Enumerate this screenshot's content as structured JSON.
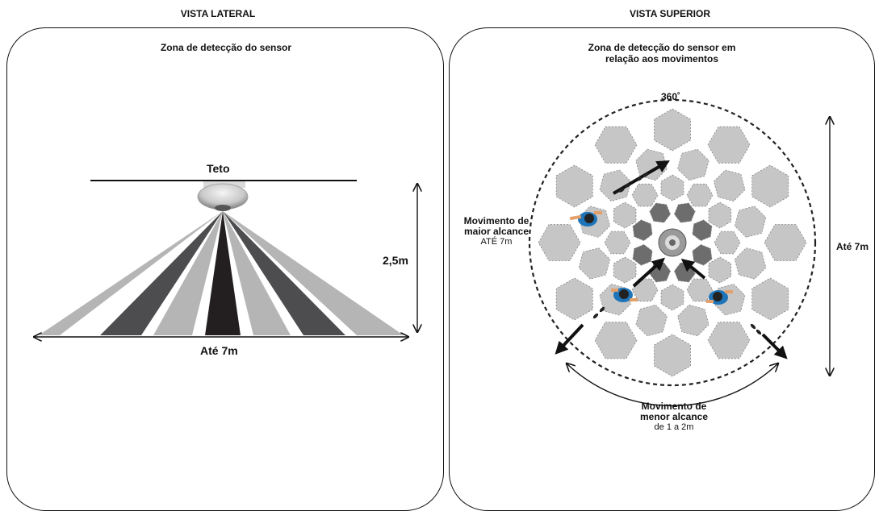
{
  "left": {
    "section_title": "VISTA LATERAL",
    "panel_title": "Zona de detecção do sensor",
    "ceiling_label": "Teto",
    "height_label": "2,5m",
    "range_label": "Até 7m"
  },
  "right": {
    "section_title": "VISTA SUPERIOR",
    "panel_title_line1": "Zona de detecção do sensor em",
    "panel_title_line2": "relação aos movimentos",
    "angle_label": "360˚",
    "range_label": "Até 7m",
    "major_title_line1": "Movimento de",
    "major_title_line2": "maior alcance",
    "major_sub": "ATÉ 7m",
    "minor_title_line1": "Movimento de",
    "minor_title_line2": "menor alcance",
    "minor_sub": "de 1 a 2m"
  },
  "colors": {
    "beam_light": "#b5b5b5",
    "beam_dark": "#4d4d4f",
    "beam_center": "#231f20",
    "hex_light": "#c6c6c6",
    "hex_dark": "#6d6d6d",
    "person_shirt": "#1e74b9"
  }
}
